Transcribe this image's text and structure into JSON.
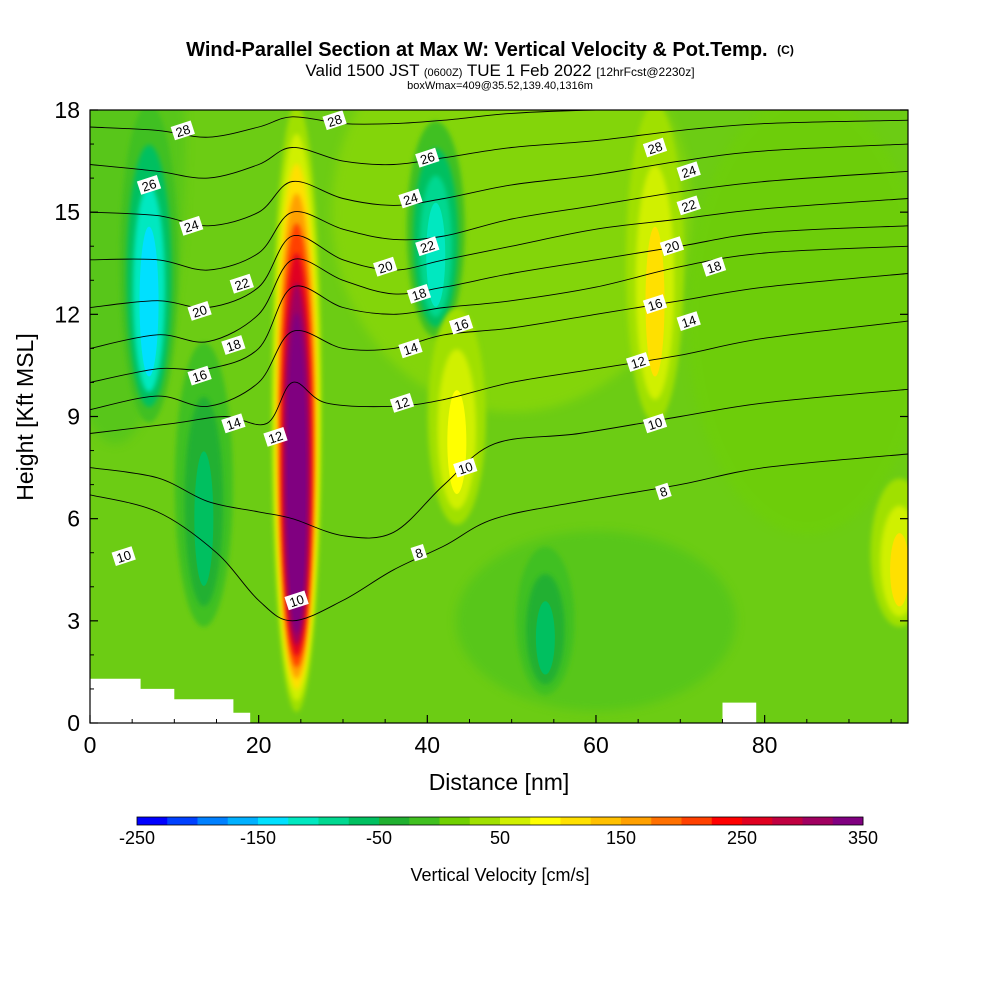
{
  "chart_data": {
    "type": "heatmap",
    "title": {
      "main": "Wind-Parallel Section at Max W: Vertical Velocity & Pot.Temp.",
      "copyright": "(C)",
      "valid_prefix": "Valid 1500 JST",
      "valid_utc": "(0600Z)",
      "valid_date": "TUE 1 Feb 2022",
      "forecast": "[12hrFcst@2230z]",
      "subtitle": "boxWmax=409@35.52,139.40,1316m"
    },
    "xlabel": "Distance [nm]",
    "ylabel": "Height [Kft MSL]",
    "xlim": [
      0,
      97
    ],
    "ylim": [
      0,
      18
    ],
    "x_ticks": [
      0,
      20,
      40,
      60,
      80
    ],
    "y_ticks": [
      0,
      3,
      6,
      9,
      12,
      15,
      18
    ],
    "colorbar": {
      "label": "Vertical Velocity [cm/s]",
      "min": -250,
      "max": 350,
      "step": 25,
      "tick_values": [
        -250,
        -150,
        -50,
        50,
        150,
        250,
        350
      ],
      "tick_labels": [
        "-250",
        "-150",
        "-50",
        "50",
        "150",
        "250",
        "350"
      ],
      "colors": [
        "#0000ff",
        "#0040ff",
        "#0080ff",
        "#00b0ff",
        "#00e0ff",
        "#00e8c0",
        "#00d890",
        "#00c060",
        "#20b030",
        "#40c020",
        "#70d000",
        "#a0e000",
        "#d0f000",
        "#ffff00",
        "#ffe000",
        "#ffc000",
        "#ffa000",
        "#ff7000",
        "#ff4000",
        "#ff0000",
        "#e00020",
        "#c00040",
        "#a00060",
        "#800080"
      ]
    },
    "vertical_velocity_features": [
      {
        "kind": "updraft",
        "x": 24.5,
        "y_bottom": 0.5,
        "y_top": 18,
        "peak": 409
      },
      {
        "kind": "downdraft",
        "x": 7,
        "y_bottom": 9,
        "y_top": 18,
        "peak": -150
      },
      {
        "kind": "downdraft",
        "x": 13.5,
        "y_bottom": 3,
        "y_top": 11,
        "peak": -75
      },
      {
        "kind": "downdraft",
        "x": 41,
        "y_bottom": 11.5,
        "y_top": 17.5,
        "peak": -125
      },
      {
        "kind": "updraft",
        "x": 43.5,
        "y_bottom": 6,
        "y_top": 12,
        "peak": 75
      },
      {
        "kind": "updraft",
        "x": 67,
        "y_bottom": 9,
        "y_top": 18,
        "peak": 100
      },
      {
        "kind": "downdraft",
        "x": 54,
        "y_bottom": 1,
        "y_top": 5,
        "peak": -60
      },
      {
        "kind": "updraft",
        "x": 96,
        "y_bottom": 3,
        "y_top": 7,
        "peak": 100
      }
    ],
    "potential_temperature_contours": [
      {
        "label": "8",
        "points": [
          [
            0,
            6.7
          ],
          [
            8,
            6.2
          ],
          [
            15,
            5.0
          ],
          [
            20,
            3.6
          ],
          [
            24,
            3.0
          ],
          [
            30,
            3.6
          ],
          [
            36,
            4.5
          ],
          [
            42,
            5.2
          ],
          [
            48,
            6.0
          ],
          [
            58,
            6.5
          ],
          [
            70,
            7.0
          ],
          [
            80,
            7.5
          ],
          [
            97,
            7.9
          ]
        ]
      },
      {
        "label": "10",
        "points": [
          [
            0,
            7.5
          ],
          [
            8,
            7.2
          ],
          [
            14,
            6.5
          ],
          [
            20,
            6.2
          ],
          [
            24,
            6.0
          ],
          [
            30,
            5.5
          ],
          [
            36,
            5.6
          ],
          [
            42,
            7.0
          ],
          [
            48,
            8.2
          ],
          [
            58,
            8.5
          ],
          [
            70,
            9.0
          ],
          [
            80,
            9.4
          ],
          [
            97,
            9.8
          ]
        ]
      },
      {
        "label": "12",
        "points": [
          [
            0,
            8.5
          ],
          [
            10,
            8.8
          ],
          [
            16,
            9.0
          ],
          [
            21,
            8.8
          ],
          [
            24,
            10.0
          ],
          [
            28,
            9.4
          ],
          [
            36,
            9.3
          ],
          [
            42,
            9.5
          ],
          [
            50,
            10.0
          ],
          [
            60,
            10.4
          ],
          [
            70,
            10.8
          ],
          [
            80,
            11.3
          ],
          [
            97,
            11.8
          ]
        ]
      },
      {
        "label": "14",
        "points": [
          [
            0,
            9.2
          ],
          [
            8,
            9.6
          ],
          [
            14,
            9.3
          ],
          [
            20,
            10.0
          ],
          [
            24,
            11.5
          ],
          [
            30,
            11.0
          ],
          [
            36,
            11.0
          ],
          [
            42,
            11.4
          ],
          [
            50,
            11.6
          ],
          [
            60,
            12.0
          ],
          [
            70,
            12.4
          ],
          [
            80,
            12.8
          ],
          [
            97,
            13.2
          ]
        ]
      },
      {
        "label": "16",
        "points": [
          [
            0,
            10.0
          ],
          [
            8,
            10.4
          ],
          [
            14,
            10.4
          ],
          [
            20,
            11.0
          ],
          [
            24,
            12.8
          ],
          [
            30,
            12.2
          ],
          [
            36,
            12.0
          ],
          [
            42,
            12.2
          ],
          [
            50,
            12.4
          ],
          [
            60,
            12.8
          ],
          [
            70,
            13.4
          ],
          [
            80,
            13.8
          ],
          [
            97,
            14.0
          ]
        ]
      },
      {
        "label": "18",
        "points": [
          [
            0,
            11.0
          ],
          [
            8,
            11.4
          ],
          [
            14,
            11.2
          ],
          [
            20,
            12.0
          ],
          [
            24,
            13.6
          ],
          [
            30,
            13.0
          ],
          [
            36,
            12.6
          ],
          [
            42,
            12.8
          ],
          [
            50,
            13.2
          ],
          [
            60,
            13.6
          ],
          [
            70,
            14.0
          ],
          [
            80,
            14.4
          ],
          [
            97,
            14.6
          ]
        ]
      },
      {
        "label": "20",
        "points": [
          [
            0,
            12.2
          ],
          [
            8,
            12.4
          ],
          [
            14,
            12.2
          ],
          [
            20,
            12.8
          ],
          [
            24,
            14.3
          ],
          [
            30,
            13.6
          ],
          [
            36,
            13.3
          ],
          [
            42,
            13.6
          ],
          [
            50,
            14.0
          ],
          [
            60,
            14.5
          ],
          [
            70,
            14.8
          ],
          [
            80,
            15.1
          ],
          [
            97,
            15.4
          ]
        ]
      },
      {
        "label": "22",
        "points": [
          [
            0,
            13.6
          ],
          [
            8,
            13.6
          ],
          [
            14,
            13.3
          ],
          [
            20,
            13.8
          ],
          [
            24,
            15.0
          ],
          [
            30,
            14.5
          ],
          [
            36,
            14.2
          ],
          [
            42,
            14.3
          ],
          [
            50,
            14.8
          ],
          [
            60,
            15.2
          ],
          [
            70,
            15.6
          ],
          [
            80,
            15.9
          ],
          [
            97,
            16.2
          ]
        ]
      },
      {
        "label": "24",
        "points": [
          [
            0,
            15.0
          ],
          [
            8,
            14.9
          ],
          [
            14,
            14.6
          ],
          [
            20,
            15.0
          ],
          [
            24,
            15.9
          ],
          [
            30,
            15.4
          ],
          [
            36,
            15.2
          ],
          [
            42,
            15.4
          ],
          [
            50,
            15.8
          ],
          [
            60,
            16.1
          ],
          [
            70,
            16.5
          ],
          [
            80,
            16.8
          ],
          [
            97,
            17.0
          ]
        ]
      },
      {
        "label": "26",
        "points": [
          [
            0,
            16.4
          ],
          [
            8,
            16.2
          ],
          [
            14,
            16.0
          ],
          [
            20,
            16.4
          ],
          [
            24,
            16.9
          ],
          [
            30,
            16.5
          ],
          [
            36,
            16.4
          ],
          [
            42,
            16.6
          ],
          [
            50,
            16.9
          ],
          [
            60,
            17.1
          ],
          [
            70,
            17.4
          ],
          [
            80,
            17.6
          ],
          [
            97,
            17.7
          ]
        ]
      },
      {
        "label": "28",
        "points": [
          [
            0,
            17.5
          ],
          [
            8,
            17.4
          ],
          [
            14,
            17.2
          ],
          [
            20,
            17.5
          ],
          [
            24,
            17.8
          ],
          [
            30,
            17.6
          ],
          [
            36,
            17.6
          ],
          [
            42,
            17.7
          ],
          [
            50,
            17.9
          ],
          [
            60,
            18.0
          ],
          [
            70,
            18.0
          ]
        ]
      }
    ],
    "contour_labels": [
      {
        "text": "28",
        "x": 11,
        "y": 17.4
      },
      {
        "text": "28",
        "x": 29,
        "y": 17.7
      },
      {
        "text": "28",
        "x": 67,
        "y": 16.9
      },
      {
        "text": "26",
        "x": 7,
        "y": 15.8
      },
      {
        "text": "26",
        "x": 40,
        "y": 16.6
      },
      {
        "text": "24",
        "x": 12,
        "y": 14.6
      },
      {
        "text": "24",
        "x": 38,
        "y": 15.4
      },
      {
        "text": "24",
        "x": 71,
        "y": 16.2
      },
      {
        "text": "22",
        "x": 18,
        "y": 12.9
      },
      {
        "text": "22",
        "x": 40,
        "y": 14.0
      },
      {
        "text": "22",
        "x": 71,
        "y": 15.2
      },
      {
        "text": "20",
        "x": 13,
        "y": 12.1
      },
      {
        "text": "20",
        "x": 35,
        "y": 13.4
      },
      {
        "text": "20",
        "x": 69,
        "y": 14.0
      },
      {
        "text": "18",
        "x": 17,
        "y": 11.1
      },
      {
        "text": "18",
        "x": 39,
        "y": 12.6
      },
      {
        "text": "18",
        "x": 74,
        "y": 13.4
      },
      {
        "text": "16",
        "x": 13,
        "y": 10.2
      },
      {
        "text": "16",
        "x": 44,
        "y": 11.7
      },
      {
        "text": "16",
        "x": 67,
        "y": 12.3
      },
      {
        "text": "14",
        "x": 17,
        "y": 8.8
      },
      {
        "text": "14",
        "x": 38,
        "y": 11.0
      },
      {
        "text": "14",
        "x": 71,
        "y": 11.8
      },
      {
        "text": "12",
        "x": 22,
        "y": 8.4
      },
      {
        "text": "12",
        "x": 37,
        "y": 9.4
      },
      {
        "text": "12",
        "x": 65,
        "y": 10.6
      },
      {
        "text": "10",
        "x": 4,
        "y": 4.9
      },
      {
        "text": "10",
        "x": 44.5,
        "y": 7.5
      },
      {
        "text": "10",
        "x": 67,
        "y": 8.8
      },
      {
        "text": "10",
        "x": 24.5,
        "y": 3.6
      },
      {
        "text": "8",
        "x": 39,
        "y": 5.0
      },
      {
        "text": "8",
        "x": 68,
        "y": 6.8
      }
    ],
    "terrain": [
      [
        0,
        1.3
      ],
      [
        6,
        1.3
      ],
      [
        6,
        1.0
      ],
      [
        10,
        1.0
      ],
      [
        10,
        0.7
      ],
      [
        17,
        0.7
      ],
      [
        17,
        0.3
      ],
      [
        19,
        0.3
      ],
      [
        19,
        0
      ],
      [
        75,
        0
      ],
      [
        75,
        0.6
      ],
      [
        79,
        0.6
      ],
      [
        79,
        0
      ]
    ],
    "grid": false
  }
}
